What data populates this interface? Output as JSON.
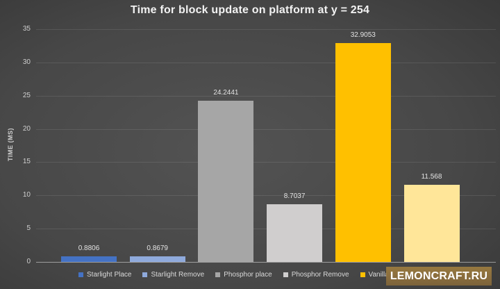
{
  "title": "Time for block update on platform at y = 254",
  "y_axis": {
    "label": "TIME (MS)"
  },
  "watermark": {
    "label": "LEMONCRAFT.RU",
    "background": "#8A6D3E"
  },
  "legend": {
    "items": [
      {
        "label": "Starlight Place",
        "color": "#4472C4"
      },
      {
        "label": "Starlight Remove",
        "color": "#8FAADC"
      },
      {
        "label": "Phosphor place",
        "color": "#A6A6A6"
      },
      {
        "label": "Phosphor Remove",
        "color": "#D0CECE"
      },
      {
        "label": "Vanilla place",
        "color": "#FFC000"
      },
      {
        "label": "",
        "color": "#FFE699"
      }
    ]
  },
  "chart_data": {
    "type": "bar",
    "title": "Time for block update on platform at y = 254",
    "xlabel": "",
    "ylabel": "TIME (MS)",
    "ylim": [
      0,
      35
    ],
    "yticks": [
      0,
      5,
      10,
      15,
      20,
      25,
      30,
      35
    ],
    "grid": true,
    "legend_position": "bottom",
    "background": "dark",
    "categories": [
      "Starlight Place",
      "Starlight Remove",
      "Phosphor place",
      "Phosphor Remove",
      "Vanilla place",
      ""
    ],
    "values": [
      0.8806,
      0.8679,
      24.2441,
      8.7037,
      32.9053,
      11.568
    ],
    "data_labels": [
      "0.8806",
      "0.8679",
      "24.2441",
      "8.7037",
      "32.9053",
      "11.568"
    ],
    "bar_colors": [
      "#4472C4",
      "#8FAADC",
      "#A6A6A6",
      "#D0CECE",
      "#FFC000",
      "#FFE699"
    ]
  }
}
